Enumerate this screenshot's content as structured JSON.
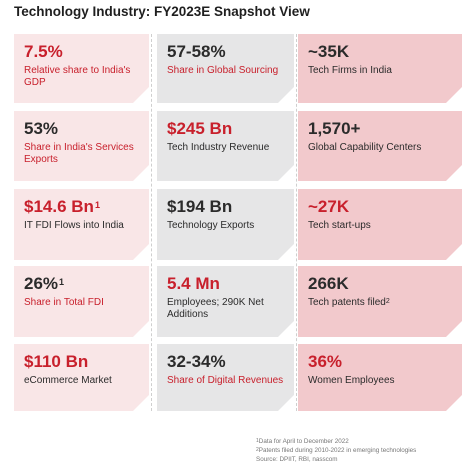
{
  "title": "Technology Industry: FY2023E Snapshot View",
  "cards": [
    {
      "value": "7.5%",
      "value_sup": "",
      "label": "Relative share to India's GDP",
      "label_sup": ""
    },
    {
      "value": "57-58%",
      "value_sup": "",
      "label": "Share in Global Sourcing",
      "label_sup": ""
    },
    {
      "value": "~35K",
      "value_sup": "",
      "label": "Tech Firms in India",
      "label_sup": ""
    },
    {
      "value": "53%",
      "value_sup": "",
      "label": "Share in India's Services Exports",
      "label_sup": ""
    },
    {
      "value": "$245 Bn",
      "value_sup": "",
      "label": "Tech Industry Revenue",
      "label_sup": ""
    },
    {
      "value": "1,570+",
      "value_sup": "",
      "label": "Global Capability Centers",
      "label_sup": ""
    },
    {
      "value": "$14.6 Bn",
      "value_sup": "1",
      "label": "IT FDI Flows into India",
      "label_sup": ""
    },
    {
      "value": "$194 Bn",
      "value_sup": "",
      "label": "Technology Exports",
      "label_sup": ""
    },
    {
      "value": "~27K",
      "value_sup": "",
      "label": "Tech start-ups",
      "label_sup": ""
    },
    {
      "value": "26%",
      "value_sup": "1",
      "label": "Share in Total FDI",
      "label_sup": ""
    },
    {
      "value": "5.4 Mn",
      "value_sup": "",
      "label": "Employees; 290K Net Additions",
      "label_sup": ""
    },
    {
      "value": "266K",
      "value_sup": "",
      "label": "Tech patents filed",
      "label_sup": "2"
    },
    {
      "value": "$110 Bn",
      "value_sup": "",
      "label": "eCommerce Market",
      "label_sup": ""
    },
    {
      "value": "32-34%",
      "value_sup": "",
      "label": "Share of Digital Revenues",
      "label_sup": ""
    },
    {
      "value": "36%",
      "value_sup": "",
      "label": "Women Employees",
      "label_sup": ""
    }
  ],
  "footnotes": [
    {
      "sup": "1",
      "text": "Data for April to December 2022"
    },
    {
      "sup": "2",
      "text": "Patents filed during 2010-2022 in emerging technologies"
    },
    {
      "sup": "",
      "text": "Source: DPIIT, RBI, nasscom"
    }
  ],
  "colors": {
    "accent_red": "#c8202c",
    "card_light_pink": "#f9e6e7",
    "card_grey": "#e6e6e7",
    "card_pink": "#f2c9cc"
  }
}
